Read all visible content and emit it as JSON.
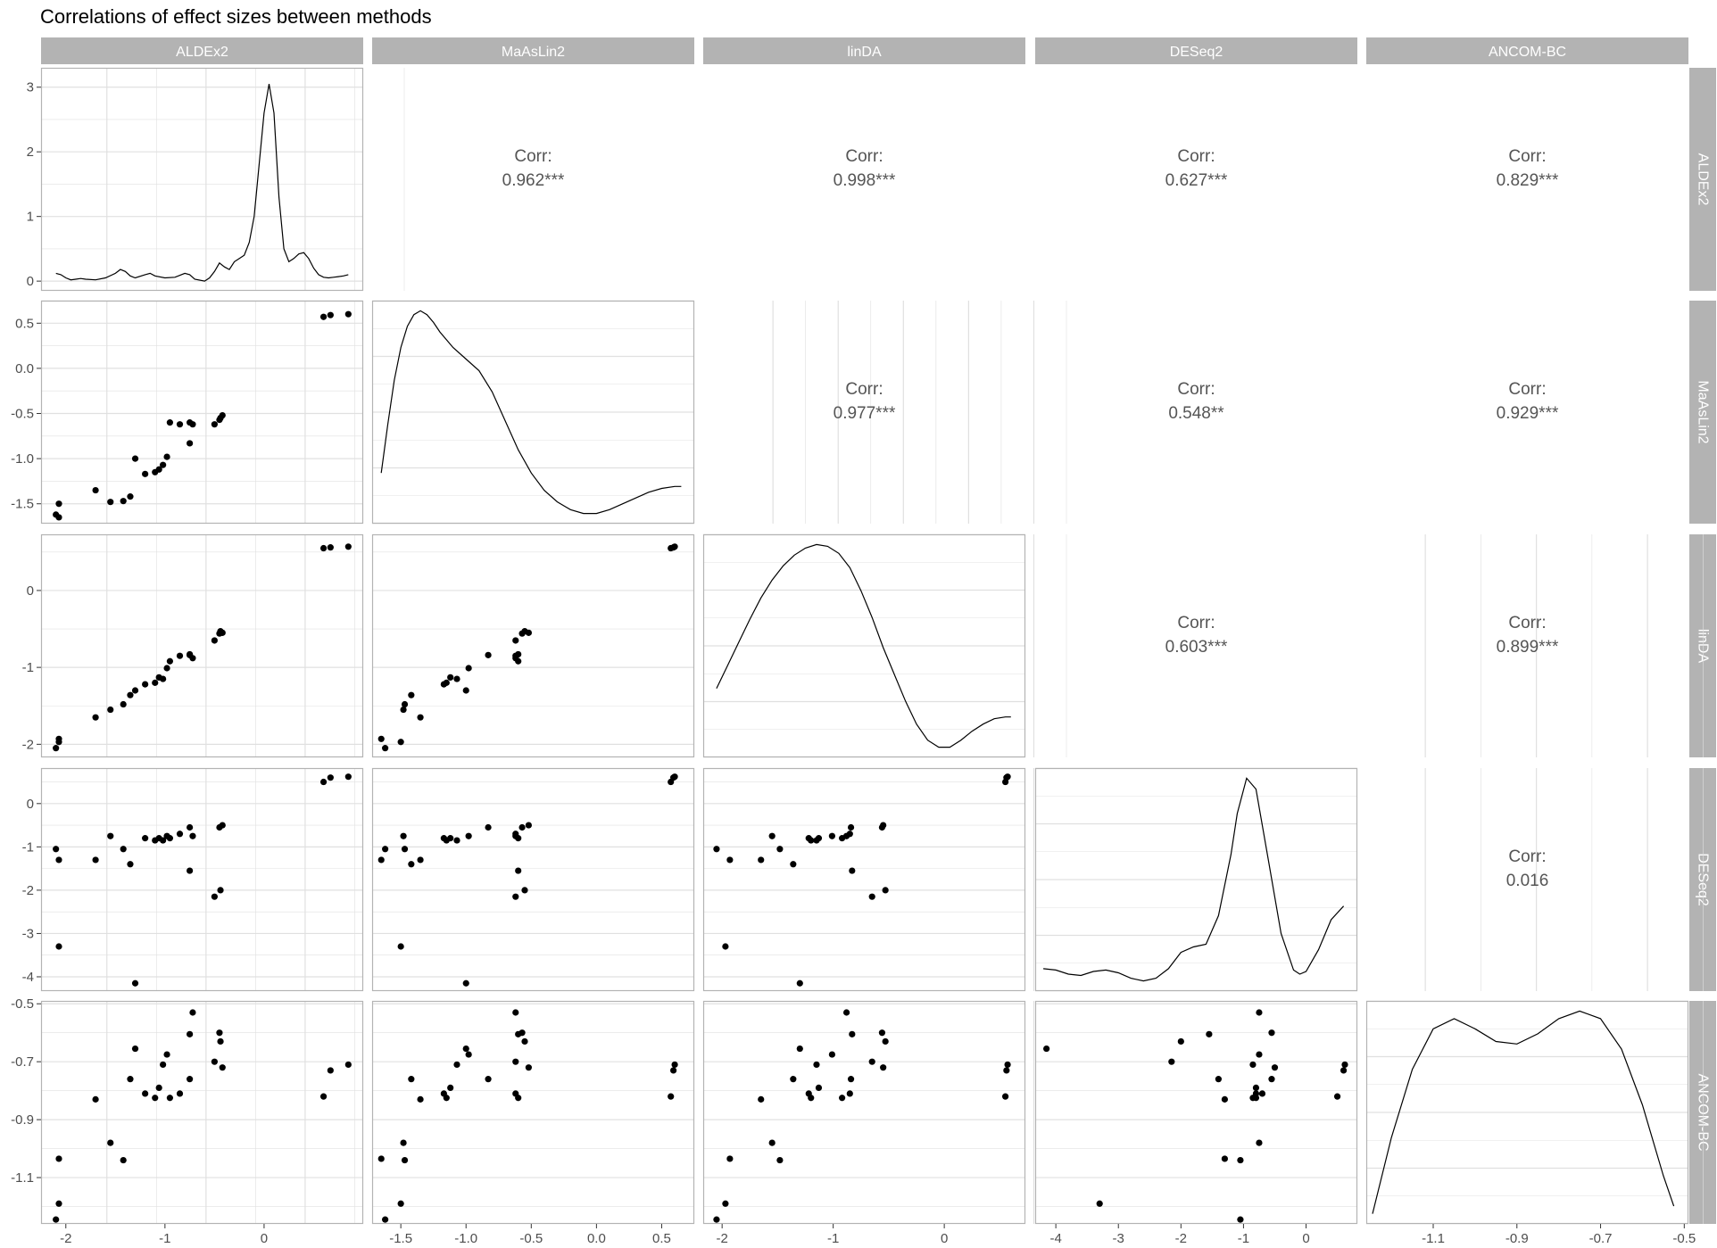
{
  "title": "Correlations of effect sizes between methods",
  "colors": {
    "strip_bg": "#b3b3b3",
    "strip_text": "#ffffff",
    "grid": "#e0e0e0",
    "panel_border": "#b3b3b3",
    "points": "#000000",
    "density_line": "#000000",
    "corr_text": "#555555"
  },
  "chart_data": {
    "type": "scatter",
    "variables": [
      "ALDEx2",
      "MaAsLin2",
      "linDA",
      "DESeq2",
      "ANCOM-BC"
    ],
    "axis_ticks": {
      "ALDEx2": {
        "values": [
          -2,
          -1,
          0
        ],
        "labels": [
          "-2",
          "-1",
          "0"
        ],
        "lim": [
          -2.25,
          1.0
        ]
      },
      "MaAsLin2": {
        "values": [
          -1.5,
          -1.0,
          -0.5,
          0.0,
          0.5
        ],
        "labels": [
          "-1.5",
          "-1.0",
          "-0.5",
          "0.0",
          "0.5"
        ],
        "lim": [
          -1.72,
          0.75
        ]
      },
      "linDA": {
        "values": [
          -2,
          -1,
          0
        ],
        "labels": [
          "-2",
          "-1",
          "0"
        ],
        "lim": [
          -2.17,
          0.73
        ]
      },
      "DESeq2": {
        "values": [
          -4,
          -3,
          -2,
          -1,
          0
        ],
        "labels": [
          "-4",
          "-3",
          "-2",
          "-1",
          "0"
        ],
        "lim": [
          -4.33,
          0.82
        ]
      },
      "ANCOM-BC": {
        "values": [
          -1.1,
          -0.9,
          -0.7,
          -0.5
        ],
        "labels": [
          "-1.1",
          "-0.9",
          "-0.7",
          "-0.5"
        ],
        "lim": [
          -1.26,
          -0.49
        ]
      }
    },
    "diag_density": {
      "ALDEx2": {
        "ylim": [
          -0.15,
          3.3
        ],
        "yticks": [
          0,
          1,
          2,
          3
        ],
        "ytick_labels": [
          "0",
          "1",
          "2",
          "3"
        ],
        "x": [
          -2.1,
          -2.05,
          -2.0,
          -1.95,
          -1.9,
          -1.85,
          -1.8,
          -1.7,
          -1.6,
          -1.5,
          -1.45,
          -1.4,
          -1.35,
          -1.3,
          -1.2,
          -1.15,
          -1.1,
          -1.0,
          -0.9,
          -0.8,
          -0.75,
          -0.7,
          -0.6,
          -0.55,
          -0.5,
          -0.45,
          -0.4,
          -0.35,
          -0.3,
          -0.25,
          -0.2,
          -0.15,
          -0.1,
          0.0,
          0.05,
          0.1,
          0.15,
          0.2,
          0.25,
          0.3,
          0.35,
          0.4,
          0.45,
          0.5,
          0.55,
          0.6,
          0.65,
          0.7,
          0.75,
          0.8,
          0.85
        ],
        "y": [
          0.12,
          0.1,
          0.05,
          0.02,
          0.03,
          0.04,
          0.03,
          0.02,
          0.05,
          0.12,
          0.18,
          0.15,
          0.08,
          0.05,
          0.1,
          0.12,
          0.08,
          0.05,
          0.06,
          0.12,
          0.1,
          0.03,
          0.0,
          0.05,
          0.15,
          0.28,
          0.22,
          0.18,
          0.3,
          0.35,
          0.4,
          0.6,
          1.0,
          2.6,
          3.05,
          2.6,
          1.3,
          0.5,
          0.3,
          0.35,
          0.42,
          0.44,
          0.35,
          0.2,
          0.1,
          0.06,
          0.05,
          0.06,
          0.07,
          0.08,
          0.1
        ]
      },
      "MaAsLin2": {
        "x": [
          -1.65,
          -1.6,
          -1.55,
          -1.5,
          -1.45,
          -1.4,
          -1.35,
          -1.3,
          -1.25,
          -1.2,
          -1.1,
          -1.0,
          -0.9,
          -0.8,
          -0.7,
          -0.6,
          -0.5,
          -0.4,
          -0.3,
          -0.2,
          -0.1,
          0.0,
          0.1,
          0.2,
          0.3,
          0.4,
          0.5,
          0.6,
          0.65
        ],
        "y": [
          0.2,
          0.45,
          0.68,
          0.85,
          0.96,
          1.02,
          1.04,
          1.02,
          0.98,
          0.93,
          0.85,
          0.79,
          0.73,
          0.62,
          0.47,
          0.32,
          0.2,
          0.11,
          0.05,
          0.01,
          -0.01,
          -0.01,
          0.01,
          0.04,
          0.07,
          0.1,
          0.12,
          0.13,
          0.13
        ]
      },
      "linDA": {
        "x": [
          -2.05,
          -1.95,
          -1.85,
          -1.75,
          -1.65,
          -1.55,
          -1.45,
          -1.35,
          -1.25,
          -1.15,
          -1.05,
          -0.95,
          -0.85,
          -0.75,
          -0.65,
          -0.55,
          -0.45,
          -0.35,
          -0.25,
          -0.15,
          -0.05,
          0.05,
          0.15,
          0.25,
          0.35,
          0.45,
          0.55,
          0.6
        ],
        "y": [
          0.37,
          0.5,
          0.63,
          0.76,
          0.88,
          0.98,
          1.06,
          1.12,
          1.16,
          1.18,
          1.17,
          1.13,
          1.05,
          0.92,
          0.77,
          0.6,
          0.45,
          0.3,
          0.17,
          0.08,
          0.04,
          0.04,
          0.08,
          0.13,
          0.17,
          0.2,
          0.21,
          0.21
        ]
      },
      "DESeq2": {
        "x": [
          -4.2,
          -4.0,
          -3.8,
          -3.6,
          -3.4,
          -3.2,
          -3.0,
          -2.8,
          -2.6,
          -2.4,
          -2.2,
          -2.0,
          -1.8,
          -1.6,
          -1.4,
          -1.2,
          -1.1,
          -0.95,
          -0.8,
          -0.6,
          -0.4,
          -0.2,
          -0.1,
          0.0,
          0.2,
          0.4,
          0.6
        ],
        "y": [
          0.16,
          0.15,
          0.12,
          0.11,
          0.14,
          0.15,
          0.13,
          0.09,
          0.07,
          0.09,
          0.16,
          0.28,
          0.32,
          0.34,
          0.55,
          1.0,
          1.3,
          1.56,
          1.48,
          0.95,
          0.42,
          0.15,
          0.12,
          0.14,
          0.3,
          0.52,
          0.62
        ]
      },
      "ANCOM-BC": {
        "x": [
          -1.245,
          -1.2,
          -1.15,
          -1.1,
          -1.05,
          -1.0,
          -0.95,
          -0.9,
          -0.85,
          -0.8,
          -0.75,
          -0.7,
          -0.65,
          -0.6,
          -0.55,
          -0.525
        ],
        "y": [
          0.05,
          0.35,
          0.62,
          0.78,
          0.82,
          0.78,
          0.73,
          0.72,
          0.76,
          0.82,
          0.85,
          0.82,
          0.7,
          0.48,
          0.2,
          0.08
        ]
      }
    },
    "correlations": [
      {
        "row": 0,
        "col": 1,
        "label": "Corr:",
        "value": "0.962***"
      },
      {
        "row": 0,
        "col": 2,
        "label": "Corr:",
        "value": "0.998***"
      },
      {
        "row": 0,
        "col": 3,
        "label": "Corr:",
        "value": "0.627***"
      },
      {
        "row": 0,
        "col": 4,
        "label": "Corr:",
        "value": "0.829***"
      },
      {
        "row": 1,
        "col": 2,
        "label": "Corr:",
        "value": "0.977***"
      },
      {
        "row": 1,
        "col": 3,
        "label": "Corr:",
        "value": "0.548**"
      },
      {
        "row": 1,
        "col": 4,
        "label": "Corr:",
        "value": "0.929***"
      },
      {
        "row": 2,
        "col": 3,
        "label": "Corr:",
        "value": "0.603***"
      },
      {
        "row": 2,
        "col": 4,
        "label": "Corr:",
        "value": "0.899***"
      },
      {
        "row": 3,
        "col": 4,
        "label": "Corr:",
        "value": "0.016"
      }
    ],
    "points": {
      "ALDEx2": [
        -2.1,
        -2.07,
        -2.07,
        -1.7,
        -1.55,
        -1.42,
        -1.35,
        -1.3,
        -1.2,
        -1.1,
        -1.06,
        -1.02,
        -0.98,
        -0.95,
        -0.85,
        -0.75,
        -0.75,
        -0.72,
        -0.5,
        -0.45,
        -0.44,
        -0.42,
        0.6,
        0.67,
        0.85
      ],
      "MaAsLin2": [
        -1.62,
        -1.65,
        -1.5,
        -1.35,
        -1.48,
        -1.47,
        -1.42,
        -1.0,
        -1.17,
        -1.15,
        -1.12,
        -1.07,
        -0.98,
        -0.6,
        -0.62,
        -0.6,
        -0.83,
        -0.62,
        -0.62,
        -0.57,
        -0.55,
        -0.52,
        0.57,
        0.59,
        0.6
      ],
      "linDA": [
        -2.05,
        -1.93,
        -1.97,
        -1.65,
        -1.55,
        -1.48,
        -1.36,
        -1.3,
        -1.22,
        -1.2,
        -1.13,
        -1.15,
        -1.01,
        -0.92,
        -0.85,
        -0.83,
        -0.84,
        -0.88,
        -0.65,
        -0.56,
        -0.53,
        -0.55,
        0.55,
        0.56,
        0.57
      ],
      "DESeq2": [
        -1.05,
        -1.3,
        -3.3,
        -1.3,
        -0.75,
        -1.05,
        -1.4,
        -4.15,
        -0.8,
        -0.85,
        -0.8,
        -0.85,
        -0.75,
        -0.8,
        -0.7,
        -1.55,
        -0.55,
        -0.75,
        -2.15,
        -0.55,
        -2.0,
        -0.5,
        0.5,
        0.6,
        0.62
      ],
      "ANCOM-BC": [
        -1.245,
        -1.035,
        -1.19,
        -0.83,
        -0.98,
        -1.04,
        -0.76,
        -0.655,
        -0.81,
        -0.825,
        -0.79,
        -0.71,
        -0.675,
        -0.825,
        -0.81,
        -0.605,
        -0.76,
        -0.53,
        -0.7,
        -0.6,
        -0.63,
        -0.72,
        -0.82,
        -0.73,
        -0.71
      ]
    }
  }
}
